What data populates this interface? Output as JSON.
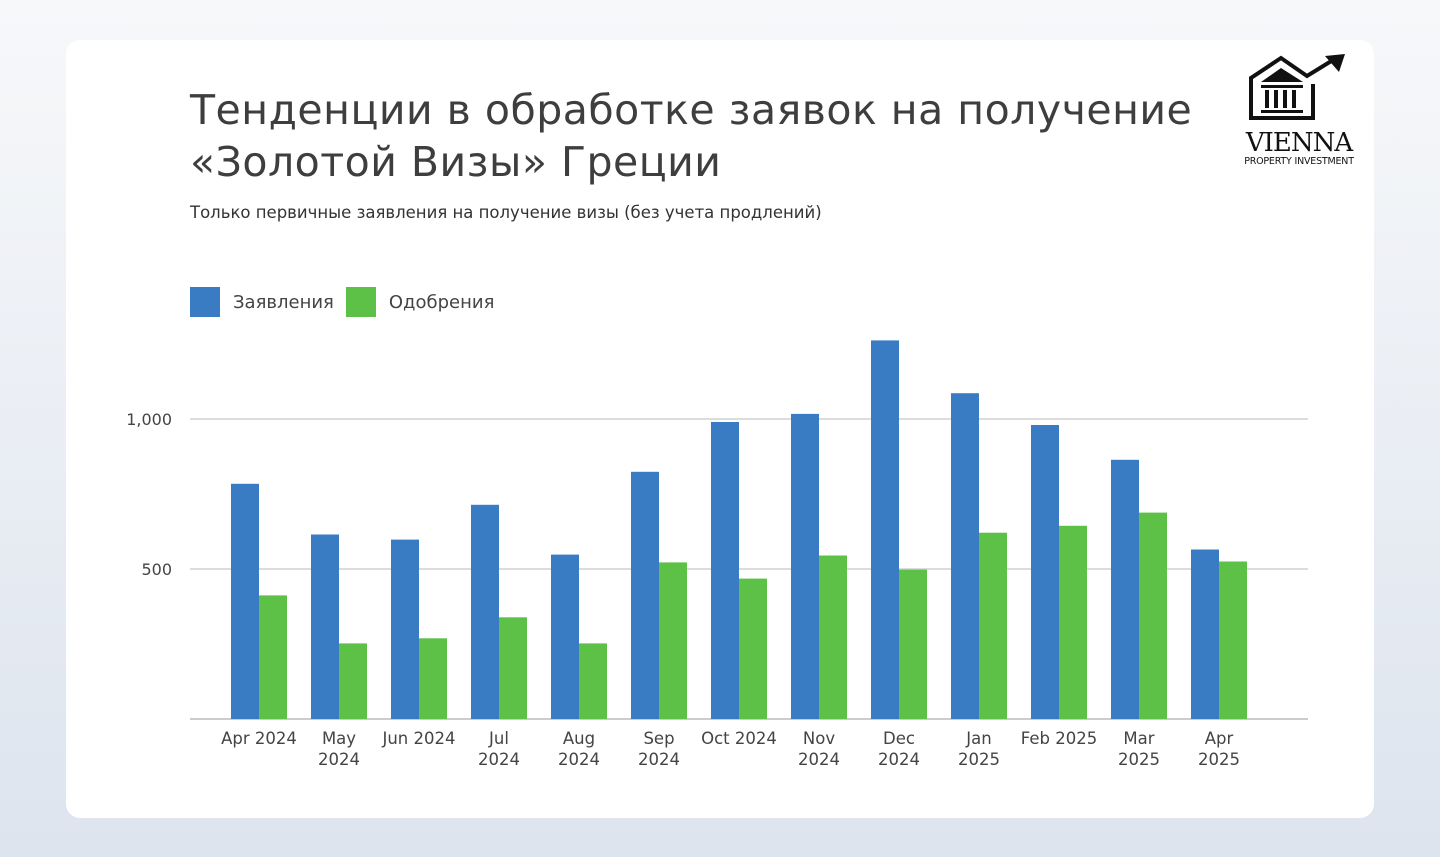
{
  "title": "Тенденции в обработке заявок на получение «Золотой Визы» Греции",
  "subtitle": "Только первичные заявления на получение визы (без учета продлений)",
  "logo": {
    "name": "VIENNA",
    "tagline": "PROPERTY INVESTMENT",
    "icon": "building-with-rising-arrow-icon"
  },
  "colors": {
    "applications": "#3a7cc4",
    "approvals": "#5cc146",
    "grid": "#d0d0d0"
  },
  "chart_data": {
    "type": "bar",
    "title": "Тенденции в обработке заявок на получение «Золотой Визы» Греции",
    "subtitle": "Только первичные заявления на получение визы (без учета продлений)",
    "categories": [
      [
        "Apr 2024"
      ],
      [
        "May",
        "2024"
      ],
      [
        "Jun 2024"
      ],
      [
        "Jul",
        "2024"
      ],
      [
        "Aug",
        "2024"
      ],
      [
        "Sep",
        "2024"
      ],
      [
        "Oct 2024"
      ],
      [
        "Nov",
        "2024"
      ],
      [
        "Dec",
        "2024"
      ],
      [
        "Jan",
        "2025"
      ],
      [
        "Feb 2025"
      ],
      [
        "Mar",
        "2025"
      ],
      [
        "Apr",
        "2025"
      ]
    ],
    "series": [
      {
        "name": "Заявления",
        "color": "#3a7cc4",
        "values": [
          784,
          615,
          598,
          714,
          548,
          824,
          990,
          1017,
          1262,
          1086,
          980,
          864,
          565
        ]
      },
      {
        "name": "Одобрения",
        "color": "#5cc146",
        "values": [
          412,
          252,
          269,
          339,
          252,
          522,
          468,
          545,
          498,
          621,
          644,
          688,
          525
        ]
      }
    ],
    "yticks": [
      {
        "value": 500,
        "label": "500"
      },
      {
        "value": 1000,
        "label": "1,000"
      }
    ],
    "ylim": [
      0,
      1300
    ],
    "grid": true,
    "legend": "top-left"
  }
}
